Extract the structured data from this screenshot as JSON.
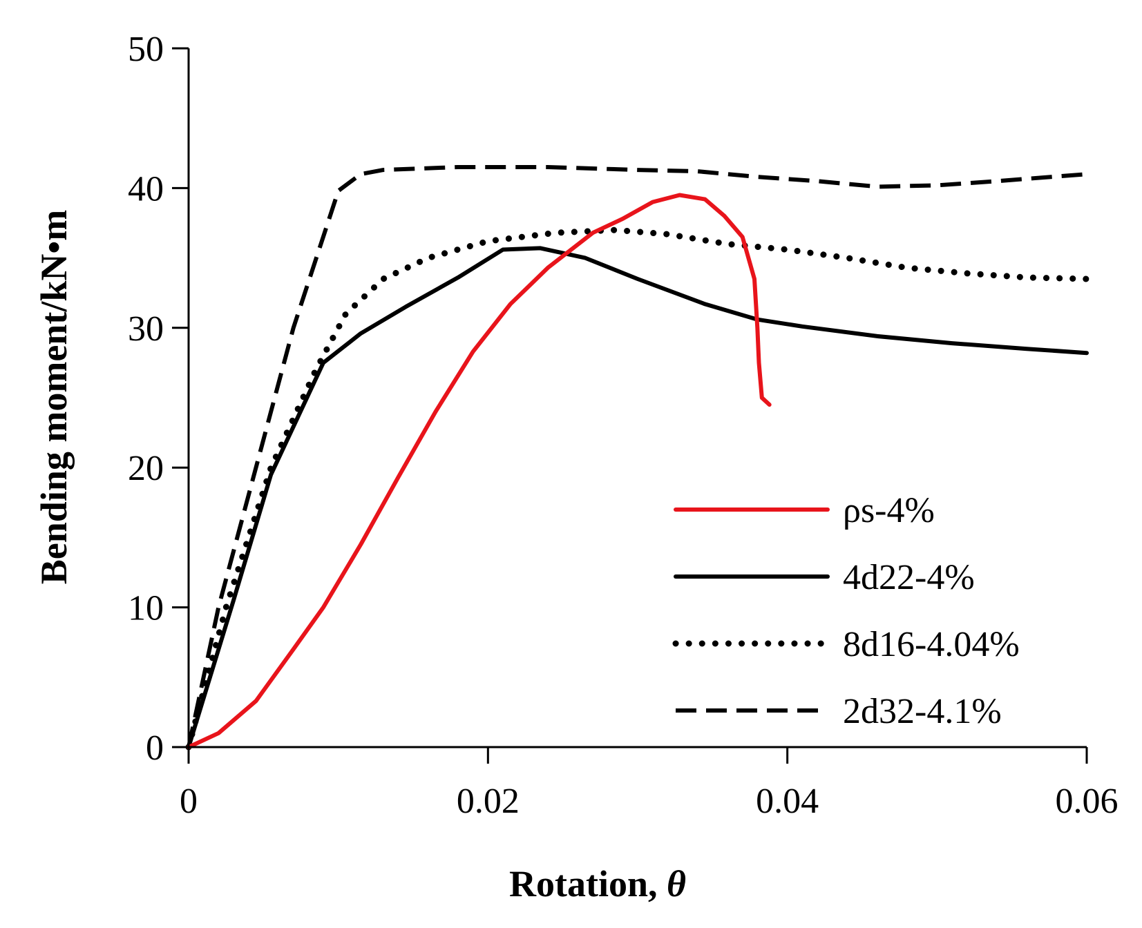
{
  "chart_data": {
    "type": "line",
    "xlabel": "Rotation, ",
    "xlabel_symbol": "θ",
    "ylabel": "Bending moment/kN•m",
    "xlim": [
      0,
      0.06
    ],
    "ylim": [
      0,
      50
    ],
    "x_ticks": [
      "0",
      "0.02",
      "0.04",
      "0.06"
    ],
    "y_ticks": [
      "0",
      "10",
      "20",
      "30",
      "40",
      "50"
    ],
    "x_tick_values": [
      0,
      0.02,
      0.04,
      0.06
    ],
    "y_tick_values": [
      0,
      10,
      20,
      30,
      40,
      50
    ],
    "grid": false,
    "legend_position": "lower-right",
    "series": [
      {
        "name": "ρs-4%",
        "color": "#e8141b",
        "style": "solid",
        "points": [
          [
            0,
            0
          ],
          [
            0.002,
            1.0
          ],
          [
            0.0045,
            3.3
          ],
          [
            0.007,
            7.0
          ],
          [
            0.009,
            10.0
          ],
          [
            0.0115,
            14.5
          ],
          [
            0.014,
            19.3
          ],
          [
            0.0165,
            24.0
          ],
          [
            0.019,
            28.3
          ],
          [
            0.0215,
            31.7
          ],
          [
            0.024,
            34.3
          ],
          [
            0.027,
            36.8
          ],
          [
            0.029,
            37.8
          ],
          [
            0.031,
            39.0
          ],
          [
            0.0328,
            39.5
          ],
          [
            0.0345,
            39.2
          ],
          [
            0.0358,
            38.0
          ],
          [
            0.037,
            36.5
          ],
          [
            0.0378,
            33.5
          ],
          [
            0.038,
            30.0
          ],
          [
            0.0381,
            27.5
          ],
          [
            0.0383,
            25.0
          ],
          [
            0.0388,
            24.5
          ]
        ]
      },
      {
        "name": "4d22-4%",
        "color": "#000000",
        "style": "solid",
        "points": [
          [
            0,
            0
          ],
          [
            0.003,
            10.5
          ],
          [
            0.0055,
            19.5
          ],
          [
            0.009,
            27.5
          ],
          [
            0.0115,
            29.6
          ],
          [
            0.0145,
            31.5
          ],
          [
            0.018,
            33.6
          ],
          [
            0.021,
            35.6
          ],
          [
            0.0235,
            35.7
          ],
          [
            0.0265,
            35.0
          ],
          [
            0.03,
            33.5
          ],
          [
            0.0345,
            31.7
          ],
          [
            0.038,
            30.6
          ],
          [
            0.041,
            30.1
          ],
          [
            0.046,
            29.4
          ],
          [
            0.051,
            28.9
          ],
          [
            0.056,
            28.5
          ],
          [
            0.06,
            28.2
          ]
        ]
      },
      {
        "name": "8d16-4.04%",
        "color": "#000000",
        "style": "dotted",
        "points": [
          [
            0,
            0
          ],
          [
            0.0025,
            10.0
          ],
          [
            0.0055,
            20.0
          ],
          [
            0.0085,
            27.0
          ],
          [
            0.0105,
            31.0
          ],
          [
            0.013,
            33.5
          ],
          [
            0.016,
            35.0
          ],
          [
            0.02,
            36.2
          ],
          [
            0.0245,
            36.8
          ],
          [
            0.0285,
            37.0
          ],
          [
            0.032,
            36.7
          ],
          [
            0.036,
            36.0
          ],
          [
            0.04,
            35.6
          ],
          [
            0.044,
            35.0
          ],
          [
            0.048,
            34.3
          ],
          [
            0.052,
            33.9
          ],
          [
            0.056,
            33.6
          ],
          [
            0.06,
            33.5
          ]
        ]
      },
      {
        "name": "2d32-4.1%",
        "color": "#000000",
        "style": "dashed",
        "points": [
          [
            0,
            0
          ],
          [
            0.002,
            10.0
          ],
          [
            0.0045,
            20.0
          ],
          [
            0.007,
            30.0
          ],
          [
            0.01,
            39.8
          ],
          [
            0.0115,
            41.0
          ],
          [
            0.013,
            41.3
          ],
          [
            0.018,
            41.5
          ],
          [
            0.024,
            41.5
          ],
          [
            0.03,
            41.3
          ],
          [
            0.034,
            41.2
          ],
          [
            0.038,
            40.8
          ],
          [
            0.042,
            40.5
          ],
          [
            0.046,
            40.1
          ],
          [
            0.05,
            40.2
          ],
          [
            0.054,
            40.5
          ],
          [
            0.06,
            41.0
          ]
        ]
      }
    ]
  }
}
